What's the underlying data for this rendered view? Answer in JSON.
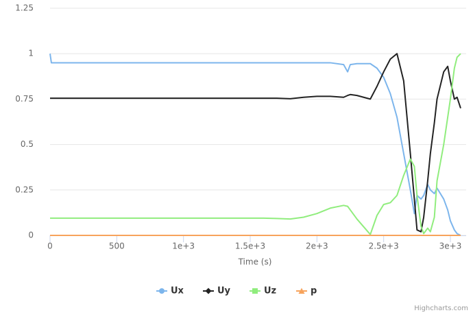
{
  "chart_data": {
    "type": "line",
    "x_label": "Time (s)",
    "credits": "Highcharts.com",
    "x": [
      0,
      10,
      200,
      400,
      600,
      800,
      1000,
      1200,
      1400,
      1600,
      1700,
      1800,
      1900,
      2000,
      2100,
      2200,
      2230,
      2250,
      2300,
      2400,
      2450,
      2500,
      2550,
      2600,
      2650,
      2700,
      2730,
      2750,
      2780,
      2800,
      2830,
      2850,
      2880,
      2900,
      2950,
      2980,
      3000,
      3030,
      3050,
      3077
    ],
    "series": [
      {
        "name": "Ux",
        "color": "#7cb5ec",
        "marker": "circle",
        "values": [
          1,
          0.95,
          0.95,
          0.95,
          0.95,
          0.95,
          0.95,
          0.95,
          0.95,
          0.95,
          0.95,
          0.95,
          0.95,
          0.95,
          0.95,
          0.94,
          0.9,
          0.94,
          0.945,
          0.945,
          0.92,
          0.87,
          0.78,
          0.65,
          0.45,
          0.25,
          0.12,
          0.22,
          0.2,
          0.22,
          0.28,
          0.25,
          0.23,
          0.26,
          0.2,
          0.14,
          0.08,
          0.03,
          0.01,
          0
        ]
      },
      {
        "name": "Uy",
        "color": "#222222",
        "marker": "diamond",
        "values": [
          0.755,
          0.755,
          0.755,
          0.755,
          0.755,
          0.755,
          0.755,
          0.755,
          0.755,
          0.755,
          0.755,
          0.752,
          0.76,
          0.765,
          0.765,
          0.76,
          0.77,
          0.775,
          0.77,
          0.75,
          0.82,
          0.9,
          0.97,
          1.0,
          0.85,
          0.45,
          0.2,
          0.03,
          0.02,
          0.1,
          0.3,
          0.45,
          0.62,
          0.75,
          0.9,
          0.93,
          0.85,
          0.75,
          0.76,
          0.7
        ]
      },
      {
        "name": "Uz",
        "color": "#90ed7d",
        "marker": "square",
        "values": [
          0.095,
          0.095,
          0.095,
          0.095,
          0.095,
          0.095,
          0.095,
          0.095,
          0.095,
          0.095,
          0.093,
          0.09,
          0.1,
          0.12,
          0.15,
          0.165,
          0.16,
          0.14,
          0.09,
          0.005,
          0.11,
          0.17,
          0.18,
          0.22,
          0.33,
          0.42,
          0.38,
          0.22,
          0.05,
          0.01,
          0.04,
          0.02,
          0.1,
          0.3,
          0.5,
          0.65,
          0.75,
          0.92,
          0.98,
          1.0
        ]
      },
      {
        "name": "p",
        "color": "#f7a35c",
        "marker": "triangle",
        "values": [
          0,
          0,
          0,
          0,
          0,
          0,
          0,
          0,
          0,
          0,
          0,
          0,
          0,
          0,
          0,
          0,
          0,
          0,
          0,
          0,
          0,
          0,
          0,
          0,
          0,
          0,
          0,
          0,
          0,
          0,
          0,
          0,
          0,
          0,
          0,
          0,
          0,
          0,
          0,
          0
        ]
      }
    ],
    "xlim": [
      0,
      3080
    ],
    "xticks": [
      0,
      500,
      {
        "value": 1000,
        "label": "1e+3"
      },
      {
        "value": 1500,
        "label": "1.5e+3"
      },
      {
        "value": 2000,
        "label": "2e+3"
      },
      {
        "value": 2500,
        "label": "2.5e+3"
      },
      {
        "value": 3000,
        "label": "3e+3"
      }
    ],
    "ylim": [
      0,
      1.25
    ],
    "yticks": [
      0,
      0.25,
      0.5,
      0.75,
      1,
      1.25
    ],
    "grid": true,
    "legend": "bottom"
  }
}
